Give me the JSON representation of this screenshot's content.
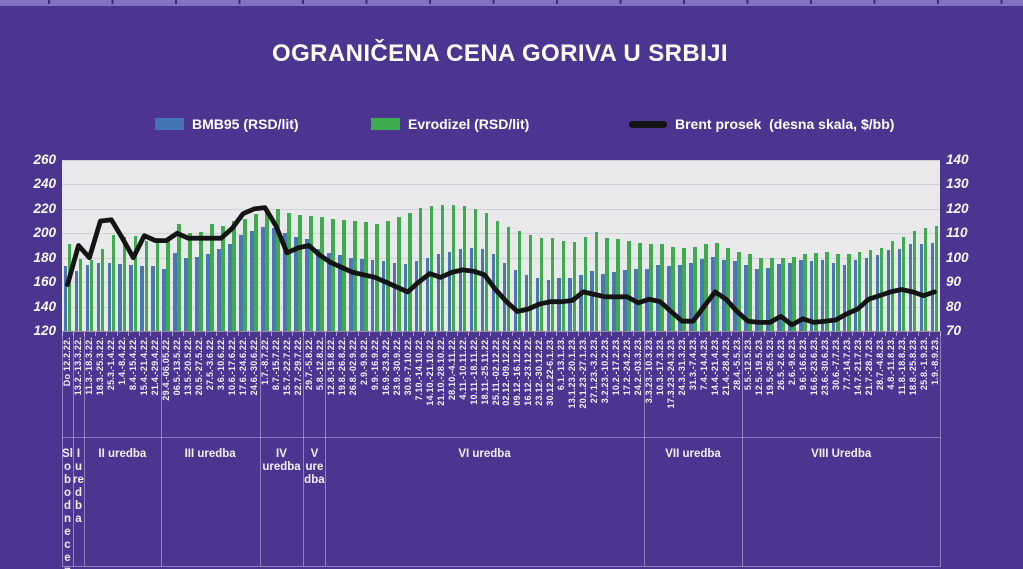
{
  "title": "OGRANIČENA CENA GORIVA U SRBIJI",
  "colors": {
    "background": "#4C3591",
    "ruler_strip": "#8173C0",
    "plot_background": "#E9E8EA",
    "bmb95_bar": "#4A77B4",
    "evrodizel_bar": "#3EAC4E",
    "brent_line": "#141414",
    "text": "#FFFFFF"
  },
  "legend": {
    "items": [
      {
        "swatch": "blue-rect",
        "label": "BMB95 (RSD/lit)"
      },
      {
        "swatch": "green-rect",
        "label": "Evrodizel (RSD/lit)"
      },
      {
        "swatch": "black-line",
        "label": "Brent prosek  (desna skala, $/bb)"
      }
    ]
  },
  "chart_data": {
    "type": "bar+line",
    "title": "OGRANIČENA CENA GORIVA U SRBIJI",
    "grid": true,
    "plot_bg": "#E9E8EA",
    "left_axis": {
      "min": 120,
      "max": 260,
      "step": 20,
      "ticks": [
        260,
        240,
        220,
        200,
        180,
        160,
        140,
        120
      ]
    },
    "right_axis": {
      "min": 70,
      "max": 140,
      "step": 10,
      "ticks": [
        140,
        130,
        120,
        110,
        100,
        90,
        80,
        70
      ]
    },
    "categories": [
      "Do 12.2.22.",
      "13.2.-13.3.22.",
      "11.3.-18.3.22.",
      "18.3.-25.3.22.",
      "25.3.-1.4.22.",
      "1.4.-8.4.22.",
      "8.4.-15.4.22.",
      "15.4.-21.4.22.",
      "21.4.-29.4.22.",
      "29.4.-06.05.22.",
      "06.5.-13.5.22.",
      "13.5.-20.5.22.",
      "20.5.-27.5.22.",
      "27.5.-3.6.22.",
      "3.6.-10.6.22.",
      "10.6.-17.6.22.",
      "17.6.-24.6.22.",
      "24.6.-30.6.22.",
      "1.7.-8.7.22.",
      "8.7.-15.7.22.",
      "15.7.-22.7.22.",
      "22.7.-29.7.22.",
      "29.7.-5.8.22.",
      "5.8.-12.8.22.",
      "12.8.-19.8.22.",
      "19.8.-26.8.22.",
      "26.8.-02.9.22.",
      "2.9.-9.9.22.",
      "9.9.-16.9.22.",
      "16.9.-23.9.22.",
      "23.9.-30.9.22.",
      "30.9.-7.10.22.",
      "7.10.-14.10.22.",
      "14.10.-21.10.22.",
      "21.10.-28.10.22.",
      "28.10.-4.11.22.",
      "4.11.-10.11.22.",
      "10.11.-18.11.22.",
      "18.11.-25.11.22.",
      "25.11.-02.12.22.",
      "02.12.-09.12.22.",
      "09.12.-16.12.22.",
      "16.12.-23.12.22.",
      "23.12.-30.12.22.",
      "30.12.22-6.1.23.",
      "6.1.-13.1.23.",
      "13.1.23.-20.1.23.",
      "20.1.23.-27.1.23.",
      "27.1.23.-3.2.23.",
      "3.2.23.-10.2.23.",
      "10.2.-17.2.23.",
      "17.2.-24.2.23.",
      "24.2.-03.3.23.",
      "3.3.23.-10.3.23.",
      "10.3.-17.3.23.",
      "17.3.23.-24.3.23.",
      "24.3.-31.3.23.",
      "31.3.-7.4.23.",
      "7.4.-14.4.23.",
      "14.4.-21.4.23.",
      "21.4.-28.4.23.",
      "28.4.-5.5.23.",
      "5.5.-12.5.23.",
      "12.5.-19.5.23.",
      "19.5.-26.5.23.",
      "26.5.-2.6.23.",
      "2.6.-9.6.23.",
      "9.6.-16.6.23.",
      "16.6.-23.6.23.",
      "23.6.-30.6.23.",
      "30.6.-7.7.23.",
      "7.7.-14.7.23.",
      "14.7.-21.7.23.",
      "21.7.-28.7.23.",
      "28.7.-4.8.23.",
      "4.8.-11.8.23.",
      "11.8.-18.8.23.",
      "18.8.-25.8.23.",
      "25.8.-1.9.23.",
      "1.9.-8.9.23."
    ],
    "series": [
      {
        "name": "BMB95 (RSD/lit)",
        "type": "bar",
        "axis": "left",
        "color": "#4A77B4",
        "values": [
          173,
          169,
          174,
          176,
          176,
          175,
          174,
          173,
          173,
          171,
          184,
          180,
          181,
          183,
          187,
          191,
          199,
          202,
          205,
          204,
          200,
          197,
          195,
          187,
          184,
          182,
          180,
          179,
          178,
          177,
          176,
          175,
          177,
          180,
          183,
          185,
          187,
          188,
          187,
          183,
          176,
          170,
          166,
          163,
          162,
          163,
          163,
          166,
          169,
          167,
          168,
          170,
          171,
          171,
          174,
          173,
          174,
          176,
          179,
          181,
          178,
          177,
          174,
          171,
          172,
          175,
          176,
          178,
          177,
          178,
          176,
          174,
          178,
          180,
          182,
          186,
          187,
          191,
          191,
          192
        ]
      },
      {
        "name": "Evrodizel (RSD/lit)",
        "type": "bar",
        "axis": "left",
        "color": "#3EAC4E",
        "values": [
          191,
          179,
          178,
          187,
          199,
          197,
          198,
          194,
          196,
          195,
          208,
          200,
          201,
          208,
          206,
          210,
          212,
          216,
          220,
          220,
          217,
          215,
          214,
          213,
          212,
          211,
          210,
          209,
          208,
          210,
          213,
          217,
          221,
          222,
          223,
          223,
          222,
          220,
          217,
          210,
          205,
          202,
          199,
          196,
          196,
          194,
          193,
          197,
          201,
          196,
          195,
          194,
          192,
          191,
          191,
          189,
          188,
          189,
          191,
          192,
          188,
          185,
          183,
          180,
          180,
          180,
          181,
          183,
          184,
          185,
          183,
          183,
          185,
          186,
          188,
          194,
          197,
          202,
          204,
          206
        ]
      },
      {
        "name": "Brent prosek (desna skala, $/bb)",
        "type": "line",
        "axis": "right",
        "color": "#141414",
        "values": [
          89,
          105,
          100,
          115,
          115.5,
          108,
          100,
          109,
          107,
          107,
          110,
          108,
          108,
          108,
          108,
          112,
          118,
          120,
          120.5,
          113,
          102,
          104,
          105,
          101,
          98,
          96,
          94,
          93,
          92,
          90,
          88,
          86,
          90,
          93.5,
          92,
          94,
          95,
          94.5,
          93,
          87,
          82,
          78,
          79,
          81,
          82,
          82,
          82.5,
          86,
          85,
          84,
          84,
          84,
          81.5,
          83,
          82,
          78,
          74,
          74,
          80,
          86,
          83,
          78,
          74,
          73.5,
          73.5,
          76,
          72.5,
          75,
          73.5,
          74,
          74.5,
          77,
          79,
          83,
          84.5,
          86,
          87,
          86,
          84.5,
          86
        ]
      }
    ],
    "category_groups": [
      {
        "label": "Slobodne cene",
        "span": 1
      },
      {
        "label": "I uredba",
        "span": 1
      },
      {
        "label": "II uredba",
        "span": 7
      },
      {
        "label": "III uredba",
        "span": 9
      },
      {
        "label": "IV uredba",
        "span": 4
      },
      {
        "label": "V uredba",
        "span": 2
      },
      {
        "label": "VI uredba",
        "span": 29
      },
      {
        "label": "VII uredba",
        "span": 9
      },
      {
        "label": "VIII Uredba",
        "span": 18
      }
    ]
  }
}
